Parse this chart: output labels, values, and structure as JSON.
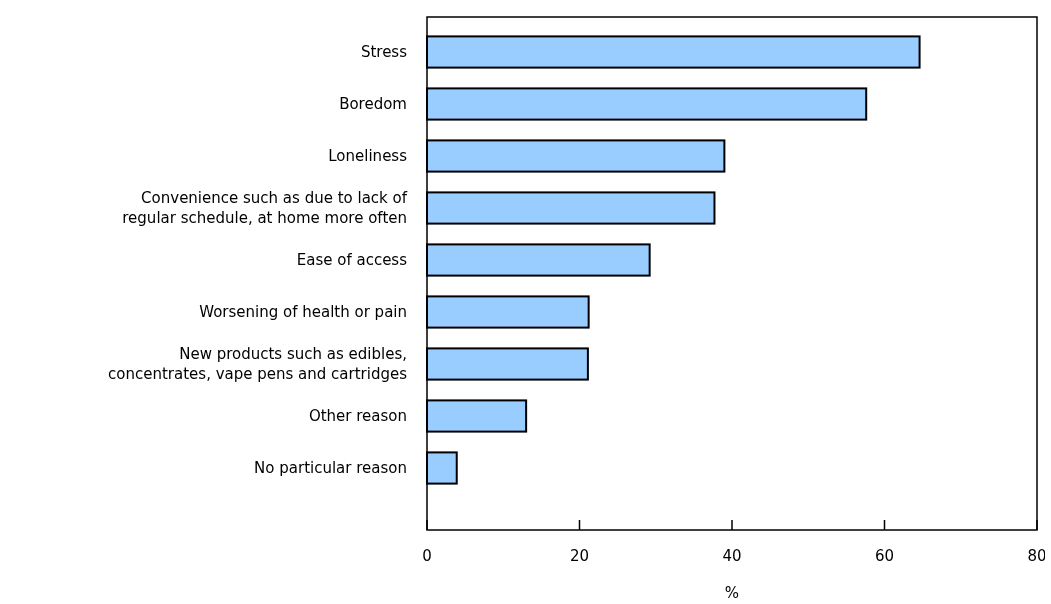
{
  "chart_data": {
    "type": "bar",
    "orientation": "horizontal",
    "xlabel": "%",
    "categories": [
      "Stress",
      "Boredom",
      "Loneliness",
      "Convenience such as due to lack of regular schedule, at home more often",
      "Ease of access",
      "Worsening of health or pain",
      "New products such as edibles, concentrates, vape pens and cartridges",
      "Other reason",
      "No particular reason"
    ],
    "values": [
      64.6,
      57.6,
      39.0,
      37.7,
      29.2,
      21.2,
      21.1,
      13.0,
      3.9
    ],
    "color": "#99ccff",
    "xlim": [
      0,
      80
    ],
    "xticks": [
      0,
      20,
      40,
      60,
      80
    ],
    "grid": false
  }
}
